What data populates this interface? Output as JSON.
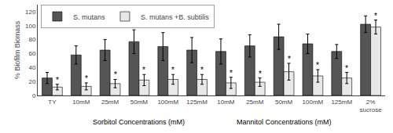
{
  "chart_data": {
    "type": "bar",
    "categories": [
      "TY",
      "10mM",
      "25mM",
      "50mM",
      "100mM",
      "125mM",
      "10mM",
      "25mM",
      "50mM",
      "100mM",
      "125mM",
      "2%\nsucrose"
    ],
    "series": [
      {
        "name": "S. mutans",
        "color": "#555555",
        "values": [
          25,
          58,
          65,
          77,
          70,
          65,
          63,
          71,
          84,
          74,
          63,
          102
        ],
        "errors": [
          8,
          13,
          15,
          17,
          20,
          18,
          18,
          16,
          18,
          14,
          10,
          12
        ]
      },
      {
        "name": "S. mutans +B. subtilis",
        "color": "#e8e8e8",
        "values": [
          12,
          13,
          17,
          22,
          23,
          23,
          18,
          19,
          34,
          28,
          25,
          98
        ],
        "errors": [
          4,
          5,
          6,
          8,
          7,
          7,
          8,
          6,
          12,
          9,
          8,
          10
        ],
        "annotations": [
          "*",
          "*",
          "*",
          "*",
          "*",
          "*",
          "*",
          "*",
          "*",
          "*",
          "*",
          "*"
        ]
      }
    ],
    "ylabel": "% Biofilm Biomass",
    "ylim": [
      0,
      130
    ],
    "yticks": [
      0,
      20,
      40,
      60,
      80,
      100,
      120
    ],
    "grid": false,
    "legend": "upper left",
    "annotations": [
      {
        "text": "Sorbitol Concentrations (mM)",
        "span": [
          1,
          5
        ]
      },
      {
        "text": "Mannitol Concentrations (mM)",
        "span": [
          6,
          10
        ]
      }
    ]
  }
}
